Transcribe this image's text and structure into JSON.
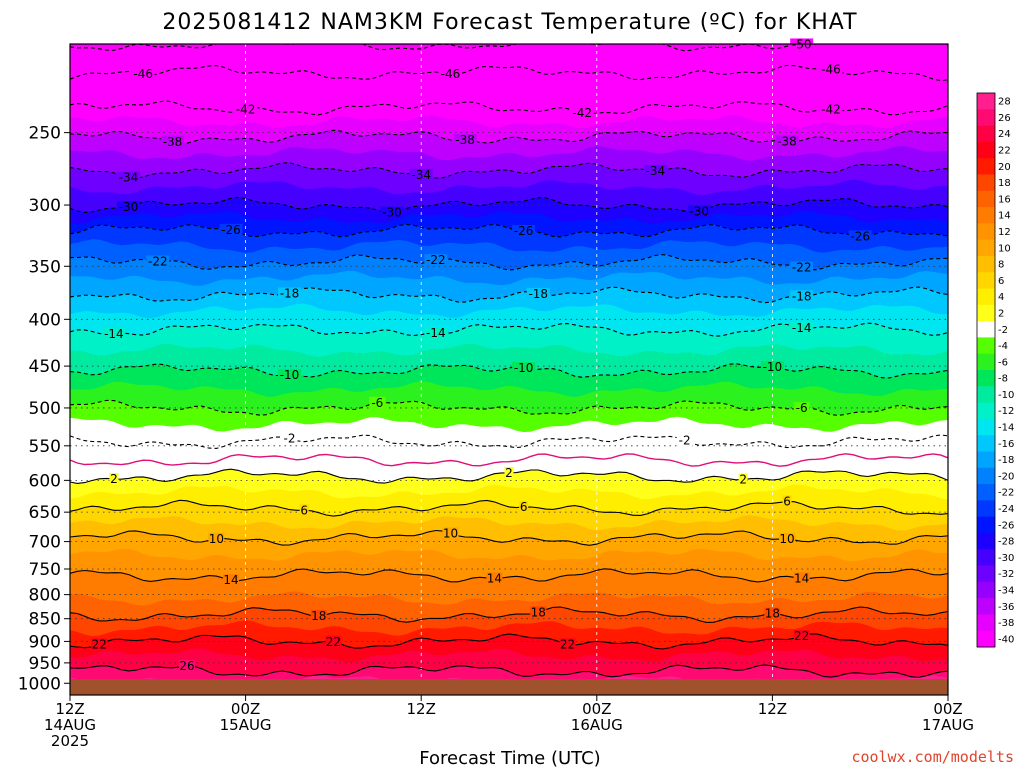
{
  "chart_data": {
    "type": "heatmap",
    "title": "2025081412 NAM3KM Forecast Temperature (ºC) for KHAT",
    "xlabel": "Forecast Time (UTC)",
    "credit": "coolwx.com/modelts",
    "y_ticks": [
      "250",
      "300",
      "350",
      "400",
      "450",
      "500",
      "550",
      "600",
      "650",
      "700",
      "750",
      "800",
      "850",
      "900",
      "950",
      "1000"
    ],
    "y_tick_values": [
      250,
      300,
      350,
      400,
      450,
      500,
      550,
      600,
      650,
      700,
      750,
      800,
      850,
      900,
      950,
      1000
    ],
    "ylim": [
      200,
      1030
    ],
    "y_scale": "log",
    "x_ticks": [
      {
        "hour": 0,
        "label1": "12Z",
        "label2": "14AUG",
        "label3": "2025"
      },
      {
        "hour": 12,
        "label1": "00Z",
        "label2": "15AUG",
        "label3": ""
      },
      {
        "hour": 24,
        "label1": "12Z",
        "label2": "",
        "label3": ""
      },
      {
        "hour": 36,
        "label1": "00Z",
        "label2": "16AUG",
        "label3": ""
      },
      {
        "hour": 48,
        "label1": "12Z",
        "label2": "",
        "label3": ""
      },
      {
        "hour": 60,
        "label1": "00Z",
        "label2": "17AUG",
        "label3": ""
      }
    ],
    "xlim": [
      0,
      60
    ],
    "colorbar_ticks": [
      "28",
      "26",
      "24",
      "22",
      "20",
      "18",
      "16",
      "14",
      "12",
      "10",
      "8",
      "6",
      "4",
      "2",
      "-2",
      "-4",
      "-6",
      "-8",
      "-10",
      "-12",
      "-14",
      "-16",
      "-18",
      "-20",
      "-22",
      "-24",
      "-26",
      "-28",
      "-30",
      "-32",
      "-34",
      "-36",
      "-38",
      "-40"
    ],
    "colorbar_values": [
      28,
      26,
      24,
      22,
      20,
      18,
      16,
      14,
      12,
      10,
      8,
      6,
      4,
      2,
      -2,
      -4,
      -6,
      -8,
      -10,
      -12,
      -14,
      -16,
      -18,
      -20,
      -22,
      -24,
      -26,
      -28,
      -30,
      -32,
      -34,
      -36,
      -38,
      -40
    ],
    "colormap": {
      "28": "#ff1f8f",
      "26": "#ff0a72",
      "24": "#ff0045",
      "22": "#ff0019",
      "20": "#ff1a00",
      "18": "#ff4600",
      "16": "#ff6200",
      "14": "#ff7c00",
      "12": "#ff9400",
      "10": "#ffa600",
      "8": "#ffbf00",
      "6": "#ffd600",
      "4": "#ffee00",
      "2": "#ffff1a",
      "0": "#ffffff",
      "-2": "#ffffff",
      "-4": "#55ff00",
      "-6": "#2bf21f",
      "-8": "#00e65a",
      "-10": "#00eba0",
      "-12": "#00f0c8",
      "-14": "#00e6f0",
      "-16": "#00c8ff",
      "-18": "#00a5ff",
      "-20": "#0082ff",
      "-22": "#0060ff",
      "-24": "#0038ff",
      "-26": "#0014ff",
      "-28": "#1e00ff",
      "-30": "#4600ff",
      "-32": "#6e00ff",
      "-34": "#9600ff",
      "-36": "#be00ff",
      "-38": "#e600ff",
      "-40": "#ff00ff"
    },
    "profile": [
      {
        "p": 1000,
        "t": 27.5
      },
      {
        "p": 950,
        "t": 25
      },
      {
        "p": 900,
        "t": 22
      },
      {
        "p": 850,
        "t": 18.5
      },
      {
        "p": 800,
        "t": 15.5
      },
      {
        "p": 750,
        "t": 13.5
      },
      {
        "p": 700,
        "t": 10.5
      },
      {
        "p": 650,
        "t": 6.5
      },
      {
        "p": 600,
        "t": 2.5
      },
      {
        "p": 570,
        "t": 0
      },
      {
        "p": 550,
        "t": -1.5
      },
      {
        "p": 500,
        "t": -6
      },
      {
        "p": 450,
        "t": -10.5
      },
      {
        "p": 400,
        "t": -15
      },
      {
        "p": 350,
        "t": -21.5
      },
      {
        "p": 320,
        "t": -26
      },
      {
        "p": 300,
        "t": -30
      },
      {
        "p": 275,
        "t": -34
      },
      {
        "p": 250,
        "t": -38.5
      },
      {
        "p": 235,
        "t": -42
      },
      {
        "p": 215,
        "t": -46
      },
      {
        "p": 200,
        "t": -50
      }
    ],
    "contours": [
      {
        "value": -50,
        "label": "-50",
        "label_hours": [
          50
        ]
      },
      {
        "value": -46,
        "label": "-46",
        "label_hours": [
          5,
          26,
          52
        ]
      },
      {
        "value": -42,
        "label": "-42",
        "label_hours": [
          12,
          35,
          52
        ]
      },
      {
        "value": -38,
        "label": "-38",
        "label_hours": [
          7,
          27,
          49
        ]
      },
      {
        "value": -34,
        "label": "-34",
        "label_hours": [
          4,
          24,
          40
        ]
      },
      {
        "value": -30,
        "label": "-30",
        "label_hours": [
          4,
          22,
          43
        ]
      },
      {
        "value": -26,
        "label": "-26",
        "label_hours": [
          11,
          31,
          54
        ]
      },
      {
        "value": -22,
        "label": "-22",
        "label_hours": [
          6,
          25,
          50
        ]
      },
      {
        "value": -18,
        "label": "-18",
        "label_hours": [
          15,
          32,
          50
        ]
      },
      {
        "value": -14,
        "label": "-14",
        "label_hours": [
          3,
          25,
          50
        ]
      },
      {
        "value": -10,
        "label": "-10",
        "label_hours": [
          15,
          31,
          48
        ]
      },
      {
        "value": -6,
        "label": "-6",
        "label_hours": [
          21,
          50
        ]
      },
      {
        "value": -2,
        "label": "-2",
        "label_hours": [
          15,
          42
        ]
      },
      {
        "value": 0,
        "label": "",
        "label_hours": []
      },
      {
        "value": 2,
        "label": "2",
        "label_hours": [
          3,
          30,
          46
        ]
      },
      {
        "value": 6,
        "label": "6",
        "label_hours": [
          16,
          31,
          49
        ]
      },
      {
        "value": 10,
        "label": "10",
        "label_hours": [
          10,
          26,
          49
        ]
      },
      {
        "value": 14,
        "label": "14",
        "label_hours": [
          11,
          29,
          50
        ]
      },
      {
        "value": 18,
        "label": "18",
        "label_hours": [
          17,
          32,
          48
        ]
      },
      {
        "value": 22,
        "label": "22",
        "label_hours": [
          2,
          18,
          34,
          50
        ]
      },
      {
        "value": 26,
        "label": "26",
        "label_hours": [
          8
        ]
      }
    ]
  }
}
